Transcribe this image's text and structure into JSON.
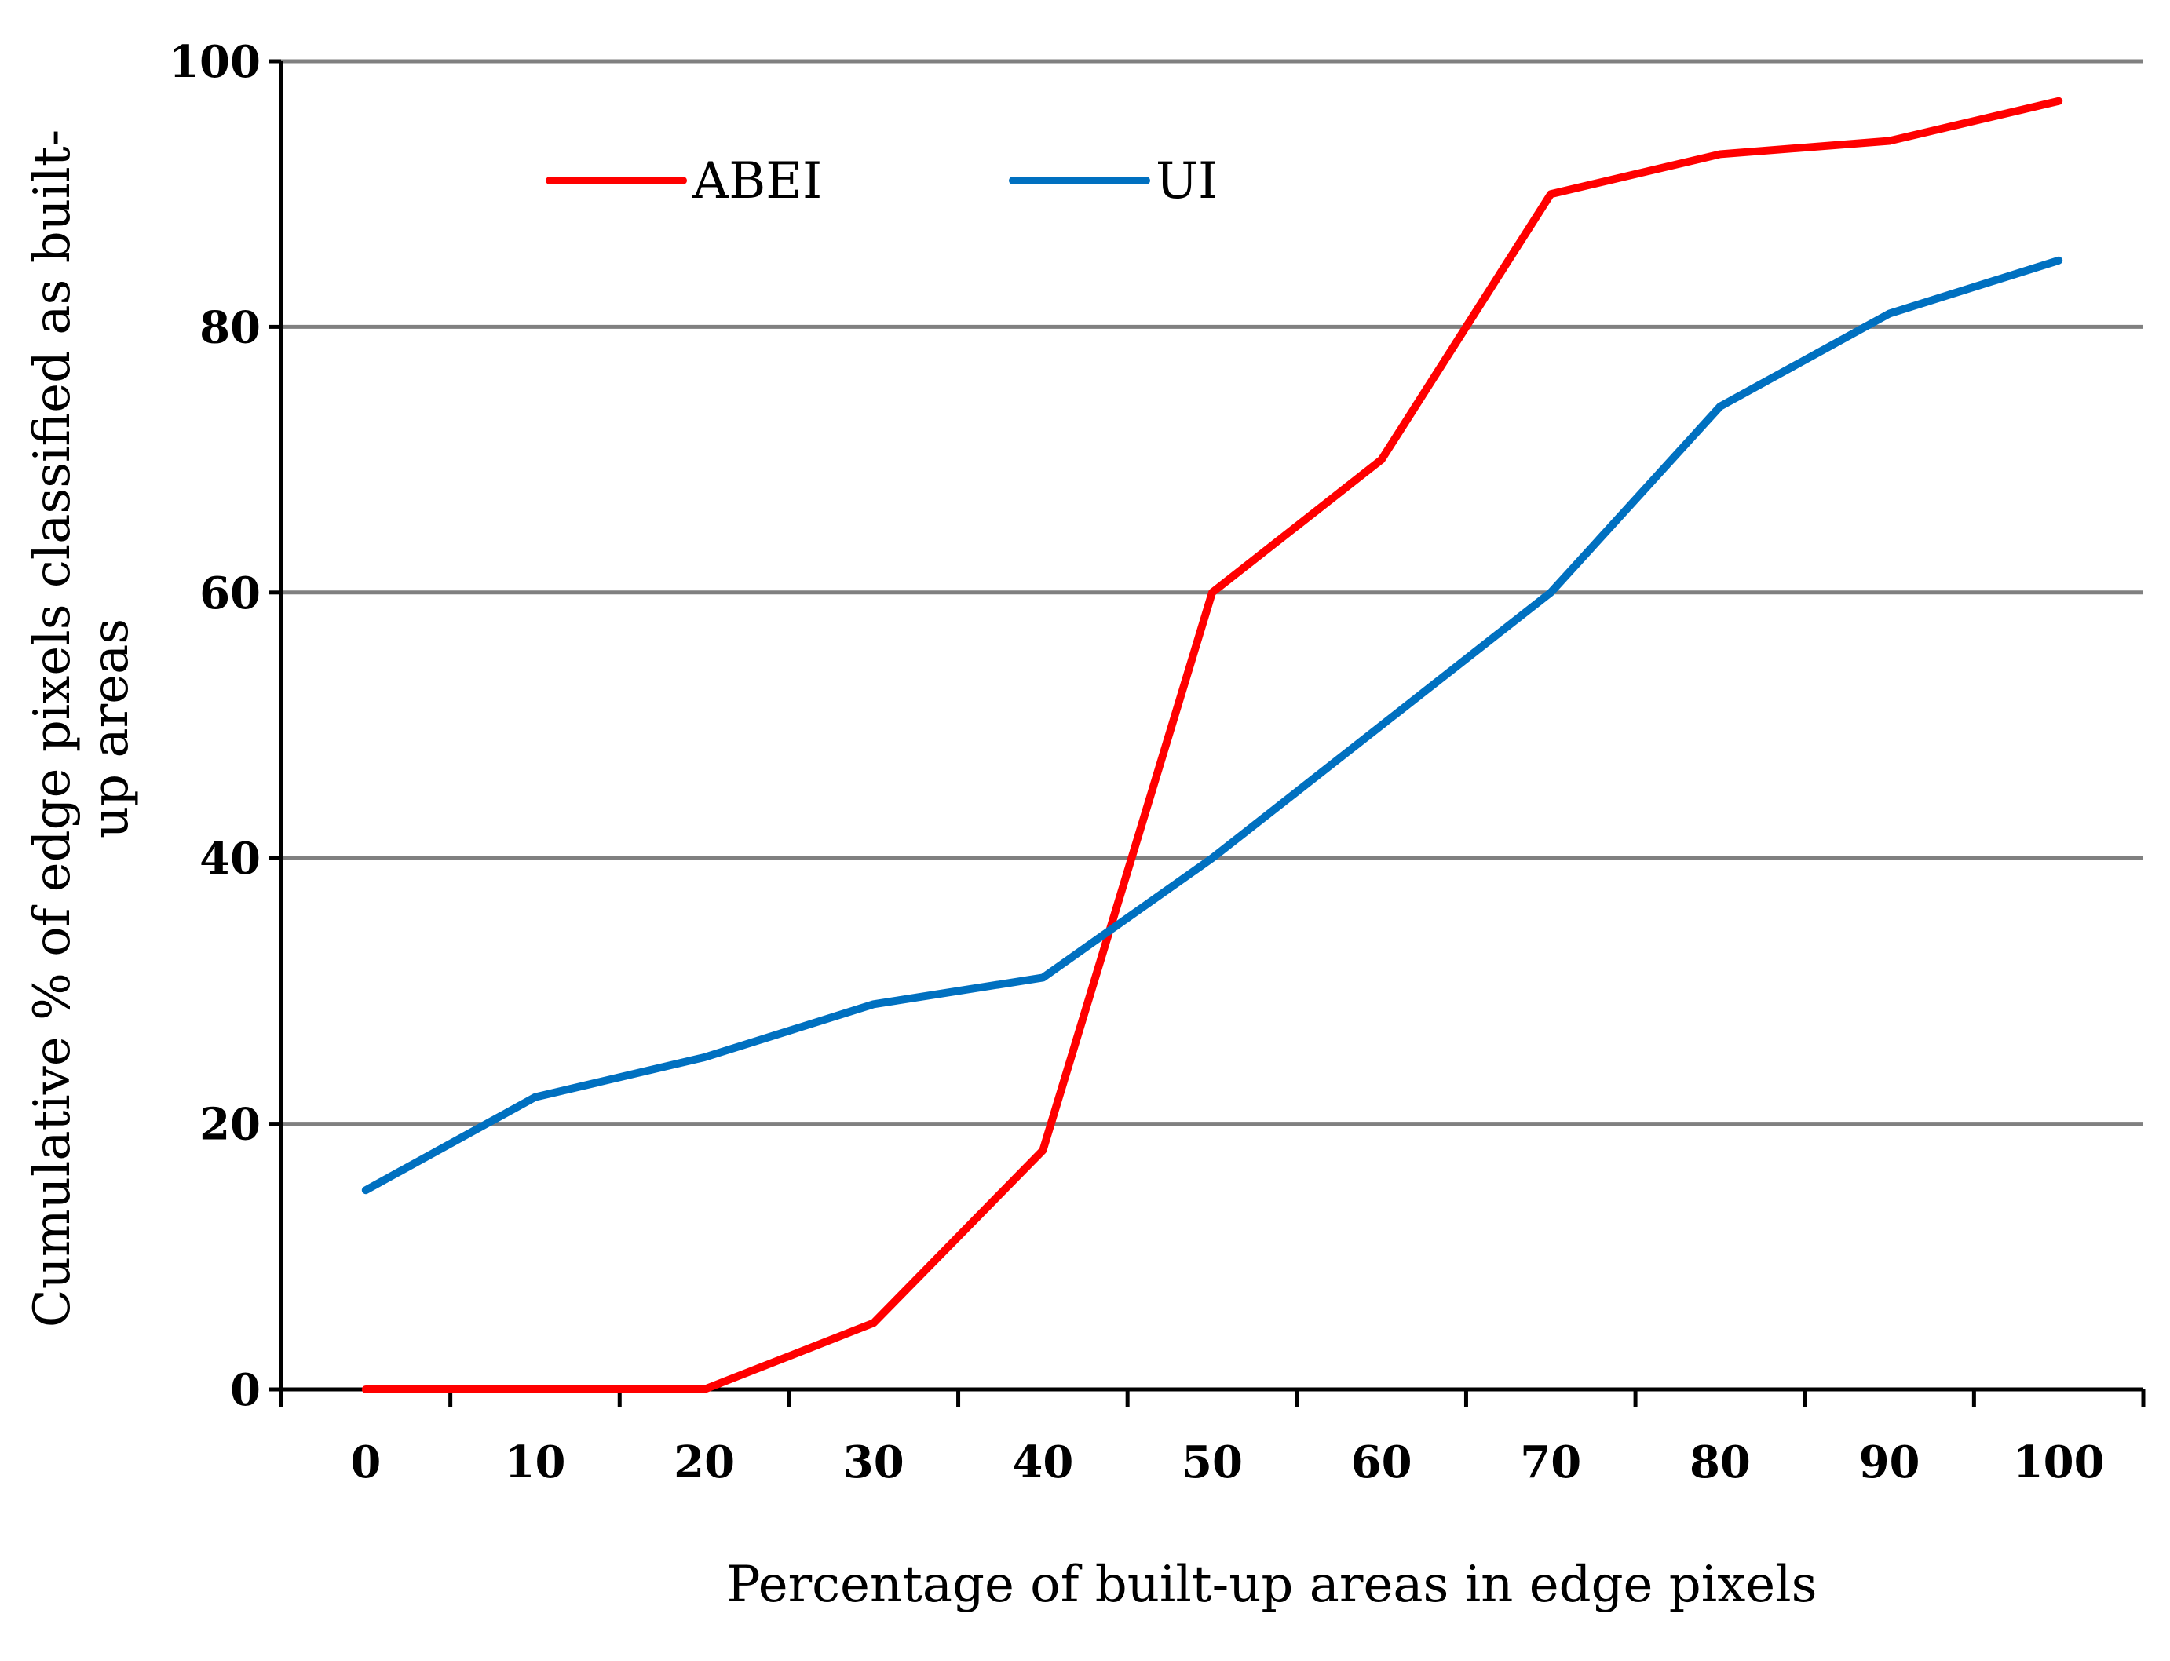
{
  "chart_data": {
    "type": "line",
    "title": "",
    "xlabel": "Percentage of built-up areas in edge pixels",
    "ylabel_lines": [
      "Cumulative % of edge pixels classified as built-",
      "up areas"
    ],
    "x": [
      0,
      10,
      20,
      30,
      40,
      50,
      60,
      70,
      80,
      90,
      100
    ],
    "x_tick_labels": [
      "0",
      "10",
      "20",
      "30",
      "40",
      "50",
      "60",
      "70",
      "80",
      "90",
      "100"
    ],
    "y_ticks": [
      0,
      20,
      40,
      60,
      80,
      100
    ],
    "y_tick_labels": [
      "0",
      "20",
      "40",
      "60",
      "80",
      "100"
    ],
    "xlim": [
      -5,
      105
    ],
    "ylim": [
      0,
      100
    ],
    "grid": true,
    "legend_position": "top-left",
    "series": [
      {
        "name": "ABEI",
        "color": "#ff0000",
        "values": [
          0,
          0,
          0,
          5,
          18,
          60,
          70,
          90,
          93,
          94,
          97
        ]
      },
      {
        "name": "UI",
        "color": "#0070c0",
        "values": [
          15,
          22,
          25,
          29,
          31,
          40,
          50,
          60,
          74,
          81,
          85
        ]
      }
    ],
    "gridline_color": "#808080",
    "axis_color": "#000000"
  }
}
